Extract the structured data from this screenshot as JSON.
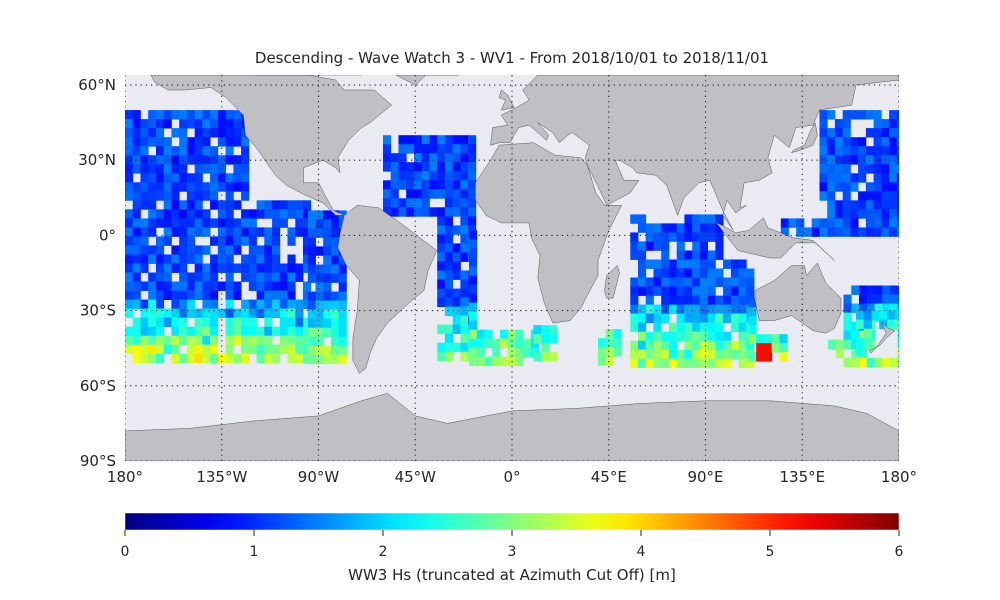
{
  "title": "Descending - Wave Watch 3 - WV1 - From 2018/10/01 to 2018/11/01",
  "map": {
    "lat_labels": [
      "60°N",
      "30°N",
      "0°",
      "30°S",
      "60°S",
      "90°S"
    ],
    "lon_labels": [
      "180°",
      "135°W",
      "90°W",
      "45°W",
      "0°",
      "45°E",
      "90°E",
      "135°E",
      "180°"
    ],
    "lat_ticks": [
      60,
      30,
      0,
      -30,
      -60,
      -90
    ],
    "lon_ticks": [
      -180,
      -135,
      -90,
      -45,
      0,
      45,
      90,
      135,
      180
    ],
    "extent": {
      "lon": [
        -180,
        180
      ],
      "lat": [
        -90,
        64
      ]
    },
    "gridlines": "dotted",
    "ocean_color": "#eaeaf2",
    "land_color": "#bfbfc4",
    "data_lat_range": [
      -50,
      50
    ],
    "hotspot": {
      "lon": 114,
      "lat": -45,
      "value": 5.2
    }
  },
  "colorbar": {
    "label": "WW3 Hs (truncated at Azimuth Cut Off) [m]",
    "ticks": [
      "0",
      "1",
      "2",
      "3",
      "4",
      "5",
      "6"
    ],
    "range": [
      0,
      6
    ],
    "colormap": "jet",
    "colors": [
      "#00007f",
      "#0000ff",
      "#007fff",
      "#00ffff",
      "#7fff7f",
      "#ffff00",
      "#ff7f00",
      "#ff0000",
      "#7f0000"
    ]
  }
}
